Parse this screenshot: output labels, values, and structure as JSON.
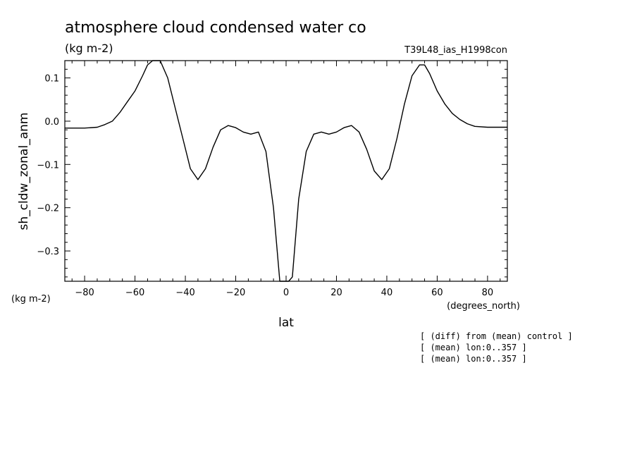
{
  "chart_data": {
    "type": "line",
    "title": "atmosphere cloud condensed water co",
    "units": "(kg m-2)",
    "run_label": "T39L48_ias_H1998con",
    "xlabel": "lat",
    "ylabel": "sh_cldw_zonal_anm",
    "x_units": "(degrees_north)",
    "y_units": "(kg m-2)",
    "xlim": [
      -87.86,
      87.86
    ],
    "ylim": [
      -0.37,
      0.14
    ],
    "x_ticks": [
      -80,
      -60,
      -40,
      -20,
      0,
      20,
      40,
      60,
      80
    ],
    "x_tick_labels": [
      "−80",
      "−60",
      "−40",
      "−20",
      "0",
      "20",
      "40",
      "60",
      "80"
    ],
    "y_ticks": [
      0.1,
      0.0,
      -0.1,
      -0.2,
      -0.3
    ],
    "y_tick_labels": [
      "0.1",
      "0.0",
      "−0.1",
      "−0.2",
      "−0.3"
    ],
    "grid": false,
    "series": [
      {
        "x": [
          -87.86,
          -84.0,
          -80.0,
          -75.0,
          -72.0,
          -69.0,
          -66.0,
          -63.0,
          -60.0,
          -57.0,
          -55.0,
          -53.0,
          -50.0,
          -47.0,
          -44.0,
          -41.0,
          -38.0,
          -35.0,
          -32.0,
          -29.0,
          -26.0,
          -23.0,
          -20.0,
          -17.0,
          -14.0,
          -11.0,
          -8.0,
          -5.0,
          -2.5,
          -1.0,
          1.0,
          2.5,
          5.0,
          8.0,
          11.0,
          14.0,
          17.0,
          20.0,
          23.0,
          26.0,
          29.0,
          32.0,
          35.0,
          38.0,
          41.0,
          44.0,
          47.0,
          50.0,
          53.0,
          55.0,
          57.0,
          60.0,
          63.0,
          66.0,
          69.0,
          72.0,
          75.0,
          80.0,
          84.0,
          87.86
        ],
        "y": [
          -0.016,
          -0.016,
          -0.016,
          -0.014,
          -0.008,
          0.0,
          0.02,
          0.045,
          0.07,
          0.105,
          0.13,
          0.14,
          0.14,
          0.1,
          0.03,
          -0.04,
          -0.11,
          -0.135,
          -0.11,
          -0.06,
          -0.02,
          -0.01,
          -0.015,
          -0.025,
          -0.03,
          -0.025,
          -0.07,
          -0.2,
          -0.37,
          -0.37,
          -0.37,
          -0.36,
          -0.18,
          -0.07,
          -0.03,
          -0.025,
          -0.03,
          -0.025,
          -0.015,
          -0.01,
          -0.025,
          -0.065,
          -0.115,
          -0.135,
          -0.11,
          -0.04,
          0.04,
          0.105,
          0.13,
          0.13,
          0.11,
          0.07,
          0.04,
          0.018,
          0.004,
          -0.006,
          -0.012,
          -0.014,
          -0.014,
          -0.014
        ]
      }
    ]
  },
  "notes": [
    "[ (diff) from (mean) control ]",
    "[ (mean) lon:0..357 ]",
    "[ (mean) lon:0..357 ]"
  ]
}
